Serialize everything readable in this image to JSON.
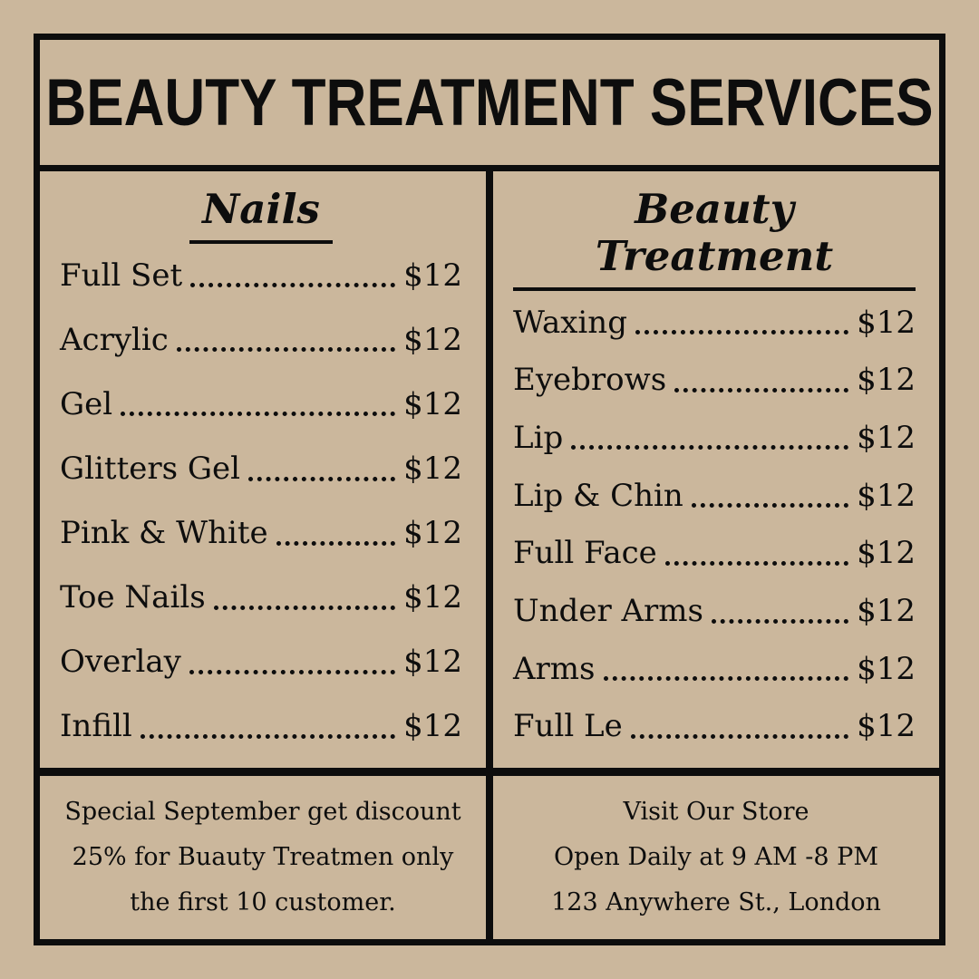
{
  "title": "BEAUTY TREATMENT SERVICES",
  "columns": [
    {
      "heading": "Nails",
      "items": [
        {
          "name": "Full Set",
          "price": "$12"
        },
        {
          "name": "Acrylic",
          "price": "$12"
        },
        {
          "name": "Gel",
          "price": "$12"
        },
        {
          "name": "Glitters Gel",
          "price": "$12"
        },
        {
          "name": "Pink & White",
          "price": "$12"
        },
        {
          "name": "Toe Nails",
          "price": "$12"
        },
        {
          "name": "Overlay",
          "price": "$12"
        },
        {
          "name": "Infill",
          "price": "$12"
        }
      ]
    },
    {
      "heading": "Beauty Treatment",
      "items": [
        {
          "name": "Waxing",
          "price": "$12"
        },
        {
          "name": "Eyebrows",
          "price": "$12"
        },
        {
          "name": "Lip",
          "price": "$12"
        },
        {
          "name": "Lip & Chin",
          "price": "$12"
        },
        {
          "name": "Full Face",
          "price": "$12"
        },
        {
          "name": "Under Arms",
          "price": "$12"
        },
        {
          "name": "Arms",
          "price": "$12"
        },
        {
          "name": "Full Le",
          "price": "$12"
        }
      ]
    }
  ],
  "promo": {
    "lines": [
      "Special September get discount",
      "25% for Buauty Treatmen only",
      "the first 10 customer."
    ]
  },
  "store": {
    "lines": [
      "Visit Our Store",
      "Open Daily at 9 AM -8 PM",
      "123 Anywhere St., London"
    ]
  },
  "colors": {
    "background": "#cbb79c",
    "ink": "#0d0d0d"
  }
}
